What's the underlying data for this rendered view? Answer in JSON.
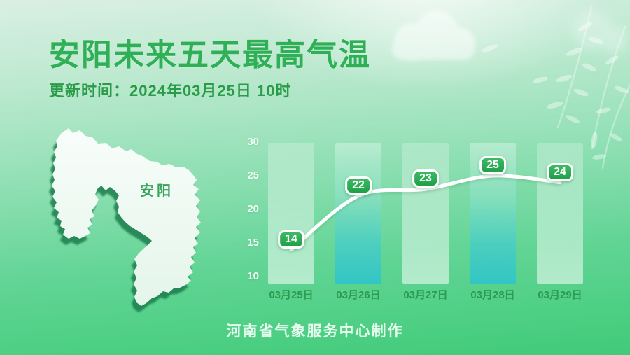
{
  "header": {
    "title": "安阳未来五天最高气温",
    "update_time": "更新时间：2024年03月25日 10时"
  },
  "map": {
    "region_label": "安阳"
  },
  "footer": {
    "credit": "河南省气象服务中心制作"
  },
  "chart_data": {
    "type": "line",
    "title": "安阳未来五天最高气温",
    "categories": [
      "03月25日",
      "03月26日",
      "03月27日",
      "03月28日",
      "03月29日"
    ],
    "series": [
      {
        "name": "最高气温",
        "values": [
          14,
          22,
          23,
          25,
          24
        ]
      }
    ],
    "unit": "℃",
    "ylim": [
      10,
      30
    ],
    "yticks": [
      10,
      15,
      20,
      25,
      30
    ],
    "grid": false,
    "legend_position": "none",
    "highlighted_columns": [
      1,
      3
    ],
    "colors": {
      "line": "#ffffff",
      "badge": "#28a74e",
      "column_light": "rgba(255,255,255,0.45)",
      "column_highlight": "#32c6c4",
      "title_green": "#2fb057",
      "axis_label_green": "#2c9b52"
    }
  }
}
